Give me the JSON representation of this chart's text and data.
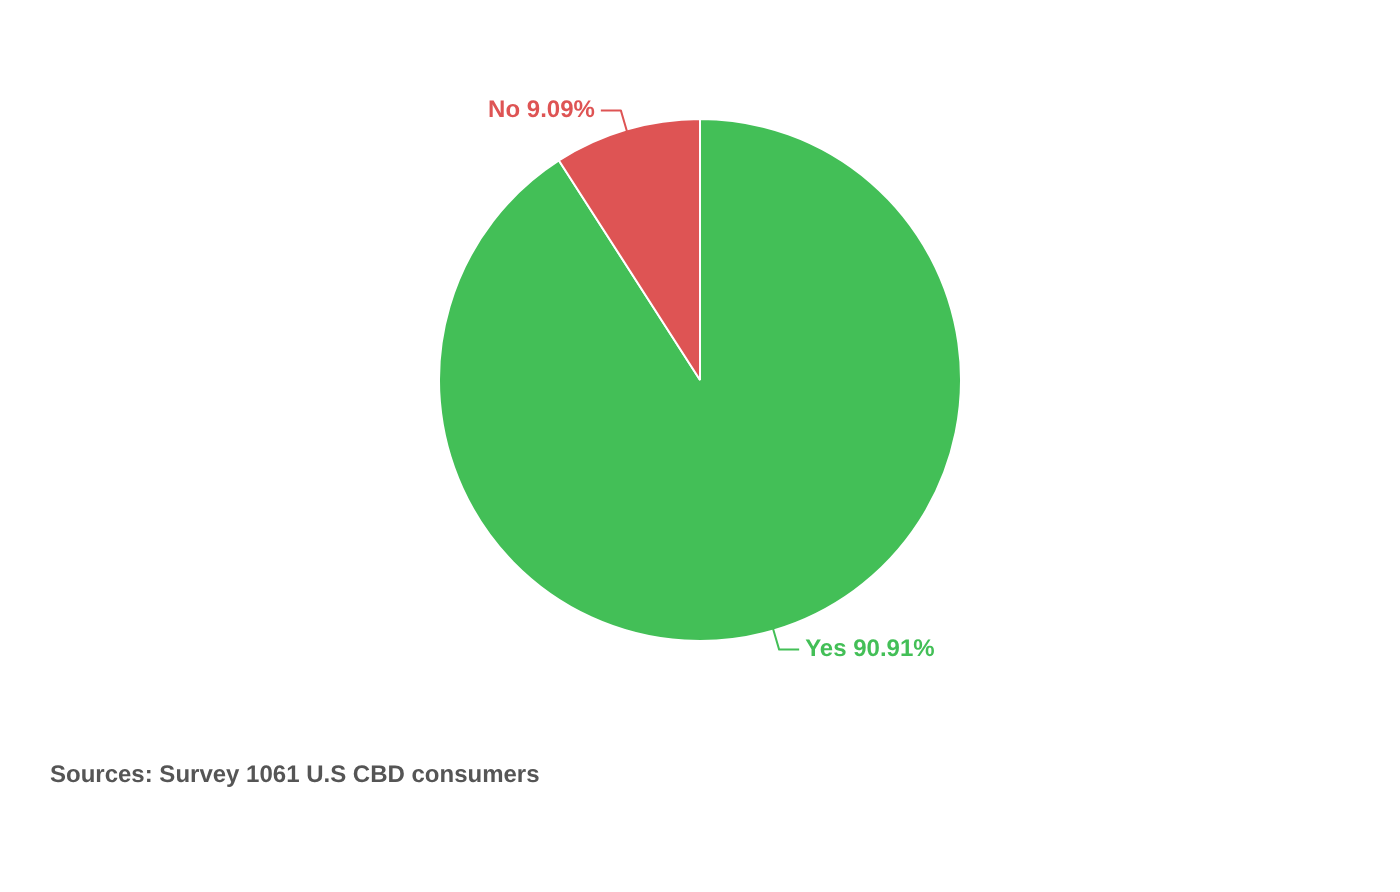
{
  "chart_data": {
    "type": "pie",
    "categories": [
      "Yes",
      "No"
    ],
    "values": [
      90.91,
      9.09
    ],
    "colors": [
      "#43bf57",
      "#de5454"
    ],
    "value_labels": [
      "90.91%",
      "9.09%"
    ],
    "legend": false,
    "annotations": [
      "Sources: Survey 1061 U.S CBD consumers"
    ]
  }
}
